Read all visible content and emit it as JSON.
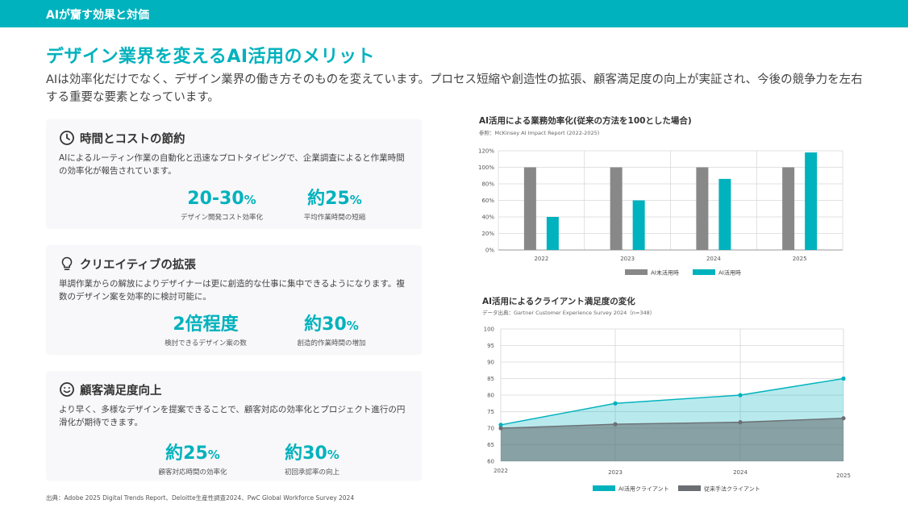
{
  "header": {
    "bar_title": "AIが齎す効果と対価"
  },
  "page": {
    "title": "デザイン業界を変えるAI活用のメリット",
    "description": "AIは効率化だけでなく、デザイン業界の働き方そのものを変えています。プロセス短縮や創造性の拡張、顧客満足度の向上が実証され、今後の競争力を左右する重要な要素となっています。"
  },
  "cards": [
    {
      "icon": "clock-icon",
      "title": "時間とコストの節約",
      "body": "AIによるルーティン作業の自動化と迅速なプロトタイピングで、企業調査によると作業時間の効率化が報告されています。",
      "metrics": [
        {
          "value": "20-30",
          "unit": "%",
          "label": "デザイン開発コスト効率化"
        },
        {
          "value": "約25",
          "unit": "%",
          "label": "平均作業時間の短縮"
        }
      ]
    },
    {
      "icon": "lightbulb-icon",
      "title": "クリエイティブの拡張",
      "body": "単調作業からの解放によりデザイナーは更に創造的な仕事に集中できるようになります。複数のデザイン案を効率的に検討可能に。",
      "metrics": [
        {
          "value": "2倍程度",
          "unit": "",
          "label": "検討できるデザイン案の数"
        },
        {
          "value": "約30",
          "unit": "%",
          "label": "創造的作業時間の増加"
        }
      ]
    },
    {
      "icon": "smile-icon",
      "title": "顧客満足度向上",
      "body": "より早く、多様なデザインを提案できることで、顧客対応の効率化とプロジェクト進行の円滑化が期待できます。",
      "metrics": [
        {
          "value": "約25",
          "unit": "%",
          "label": "顧客対応時間の効率化"
        },
        {
          "value": "約30",
          "unit": "%",
          "label": "初回承認率の向上"
        }
      ]
    }
  ],
  "footer": {
    "source": "出典：Adobe 2025 Digital Trends Report、Deloitte生産性調査2024、PwC Global Workforce Survey 2024"
  },
  "colors": {
    "accent": "#00b2bd",
    "gray": "#888888",
    "dark_gray": "#6b6f73"
  },
  "chart_data": [
    {
      "type": "bar",
      "title": "AI活用による業務効率化(従来の方法を100とした場合)",
      "subtitle": "参照：McKinsey AI Impact Report (2022-2025)",
      "categories": [
        "2022",
        "2023",
        "2024",
        "2025"
      ],
      "series": [
        {
          "name": "AI未活用時",
          "color": "#888888",
          "values": [
            100,
            100,
            100,
            100
          ]
        },
        {
          "name": "AI活用時",
          "color": "#00b2bd",
          "values": [
            40,
            60,
            86,
            118
          ]
        }
      ],
      "y_ticks": [
        "0%",
        "20%",
        "40%",
        "60%",
        "80%",
        "100%",
        "120%"
      ],
      "ylim": [
        0,
        120
      ],
      "grid": true,
      "legend": "bottom"
    },
    {
      "type": "area",
      "title": "AI活用によるクライアント満足度の変化",
      "subtitle": "データ出典：Gartner Customer Experience Survey 2024（n=348）",
      "x": [
        "2022",
        "2023",
        "2024",
        "2025"
      ],
      "series": [
        {
          "name": "AI活用クライアント",
          "color": "#00b2bd",
          "values": [
            71,
            77.5,
            80,
            85
          ]
        },
        {
          "name": "従来手法クライアント",
          "color": "#6b6f73",
          "values": [
            70,
            71.2,
            71.8,
            73
          ]
        }
      ],
      "y_ticks": [
        "60",
        "65",
        "70",
        "75",
        "80",
        "85",
        "90",
        "95",
        "100"
      ],
      "ylim": [
        60,
        100
      ],
      "grid": true,
      "legend": "bottom"
    }
  ]
}
